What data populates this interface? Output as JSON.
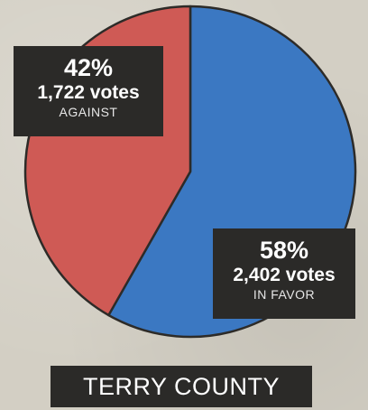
{
  "chart_data": {
    "type": "pie",
    "title": "TERRY COUNTY",
    "slices": [
      {
        "label": "IN FAVOR",
        "percent": "58%",
        "value": 2402,
        "votes_text": "2,402 votes",
        "color": "#3b78c2"
      },
      {
        "label": "AGAINST",
        "percent": "42%",
        "value": 1722,
        "votes_text": "1,722 votes",
        "color": "#cf5a55"
      }
    ]
  }
}
